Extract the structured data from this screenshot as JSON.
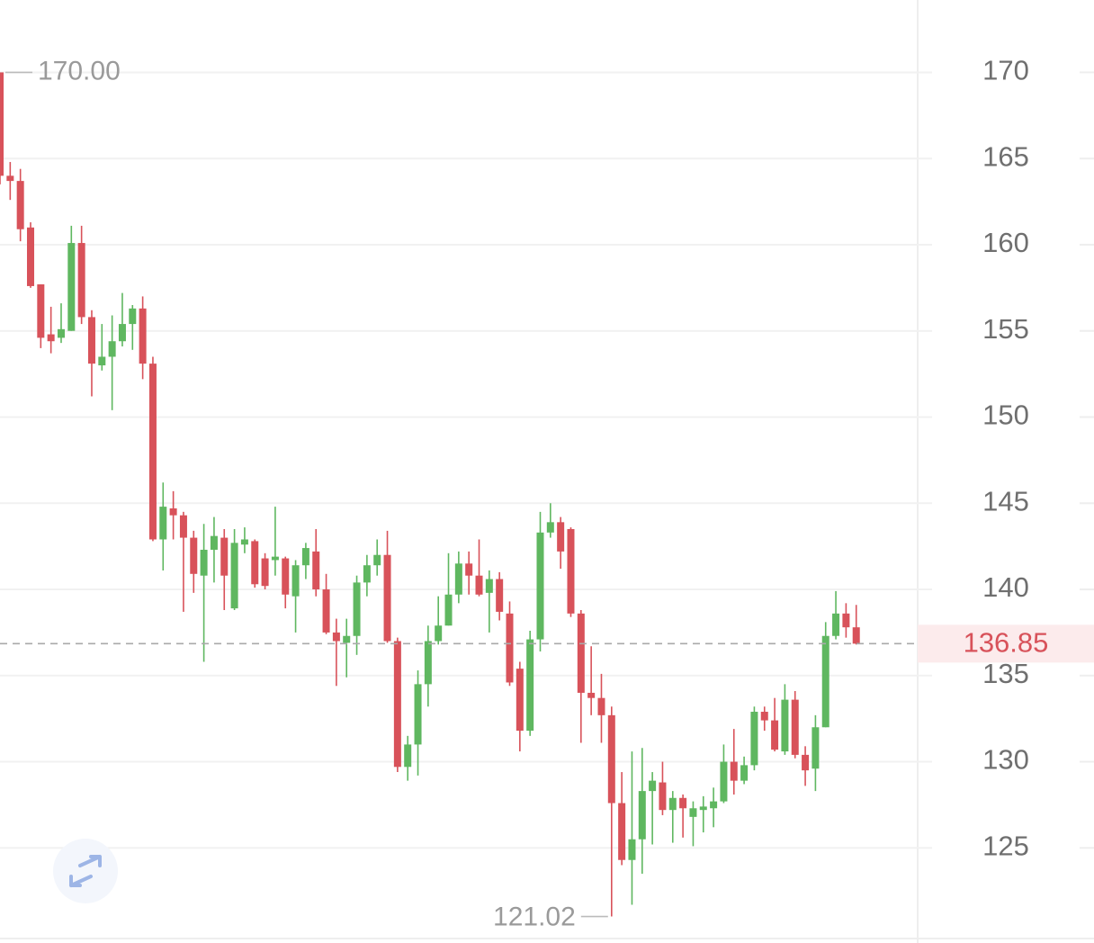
{
  "chart_data": {
    "type": "candlestick",
    "up_color": "#5fb760",
    "down_color": "#d8525a",
    "ylim": [
      119.9,
      174.2
    ],
    "yticks": [
      125,
      130,
      135,
      140,
      145,
      150,
      155,
      160,
      165,
      170
    ],
    "grid": true,
    "open": [
      170,
      164,
      163.7,
      161,
      157.7,
      154.8,
      154.6,
      155,
      160.1,
      155.8,
      153,
      153.5,
      154.4,
      155.4,
      156.3,
      153.1,
      142.9,
      144.7,
      144.3,
      143,
      140.8,
      142.3,
      143,
      138.9,
      142.6,
      142.8,
      141.8,
      141.7,
      141.8,
      139.6,
      141.4,
      142.2,
      140,
      137.5,
      136.9,
      137.3,
      140.4,
      141.4,
      142,
      137,
      129.7,
      131,
      134.5,
      137,
      137.9,
      139.7,
      141.5,
      140.8,
      139.8,
      140.6,
      138.6,
      135.4,
      131.8,
      137.1,
      143.3,
      143.9,
      143.5,
      138.6,
      134,
      133.7,
      132.7,
      127.6,
      124.3,
      125.5,
      128.3,
      128.8,
      127.2,
      127.9,
      126.8,
      127.2,
      127.3,
      127.7,
      130,
      128.9,
      129.8,
      132.9,
      132.4,
      130.6,
      133.6,
      130.4,
      129.6,
      132,
      137.3,
      138.6,
      137.8
    ],
    "high": [
      170,
      164.8,
      164.4,
      161.3,
      157.7,
      156.4,
      156.6,
      161.1,
      161.1,
      156.2,
      155.4,
      155.9,
      157.2,
      156.5,
      157,
      153.5,
      146.2,
      145.7,
      144.5,
      143.4,
      143.8,
      144.2,
      143.5,
      143.5,
      143.6,
      142.9,
      142.1,
      144.8,
      141.9,
      141.7,
      142.7,
      143.5,
      140.9,
      138.3,
      138.3,
      140.8,
      142,
      142.9,
      143.4,
      137.2,
      131.5,
      135.3,
      137.9,
      139.6,
      142.1,
      142.2,
      142.2,
      142.9,
      141.1,
      141,
      139.3,
      135.8,
      137.6,
      144.5,
      145,
      144.2,
      143.6,
      138.8,
      136.7,
      135.1,
      133.2,
      129.4,
      130.6,
      130.8,
      129.4,
      130,
      128.3,
      128.1,
      127.7,
      128,
      128.5,
      131,
      131.9,
      130.3,
      133.2,
      133.2,
      133.7,
      134.5,
      134.1,
      130.9,
      132.7,
      138.1,
      139.9,
      139.2,
      139.1
    ],
    "low": [
      163.5,
      162.6,
      160.2,
      157.5,
      154,
      153.7,
      154.3,
      155,
      155.4,
      151.2,
      152.7,
      150.4,
      154.1,
      153.9,
      152.2,
      142.8,
      141.1,
      142.9,
      138.7,
      139.8,
      135.8,
      140.4,
      138.8,
      138.8,
      142.1,
      140.1,
      140,
      140.8,
      138.9,
      137.5,
      140.6,
      139.6,
      137.4,
      134.4,
      134.9,
      136.2,
      139.6,
      140.8,
      136.9,
      129.4,
      128.9,
      129.2,
      133.2,
      136.8,
      137.9,
      139.2,
      139.7,
      139.6,
      137.5,
      138.2,
      134.4,
      130.6,
      131.5,
      136.4,
      143,
      141.2,
      138.4,
      131.1,
      132.7,
      131.1,
      121.02,
      124,
      121.7,
      123.5,
      125.2,
      126.9,
      125.3,
      125.6,
      125.1,
      125.9,
      126.2,
      127.6,
      128.1,
      128.7,
      129.5,
      131.8,
      130.6,
      130.4,
      130.2,
      128.6,
      128.3,
      132,
      137.1,
      137.2,
      136.8
    ],
    "close": [
      164,
      163.7,
      160.9,
      157.6,
      154.6,
      154.4,
      155.1,
      160.1,
      155.8,
      153.1,
      153.5,
      154.4,
      155.4,
      156.3,
      153.1,
      142.9,
      144.8,
      144.3,
      143,
      140.9,
      142.3,
      143.1,
      140.8,
      142.7,
      142.9,
      140.3,
      140.2,
      141.9,
      139.7,
      141.4,
      142.4,
      140,
      137.5,
      137,
      137.3,
      140.4,
      141.4,
      142,
      137,
      129.7,
      131,
      134.5,
      137,
      137.9,
      139.7,
      141.5,
      140.8,
      139.7,
      140.6,
      138.7,
      134.6,
      131.8,
      137.1,
      143.3,
      143.9,
      142.2,
      138.6,
      134,
      133.7,
      132.7,
      127.6,
      124.3,
      125.5,
      128.3,
      128.9,
      127.2,
      127.9,
      127.3,
      127.3,
      127.4,
      127.7,
      130,
      128.9,
      129.8,
      132.9,
      132.4,
      130.7,
      133.6,
      130.4,
      129.5,
      132,
      137.3,
      138.6,
      137.8,
      136.85
    ],
    "high_label": {
      "value": 170,
      "label": "170.00"
    },
    "low_label": {
      "value": 121.02,
      "label": "121.02"
    },
    "last_price": {
      "value": 136.85,
      "label": "136.85"
    }
  }
}
